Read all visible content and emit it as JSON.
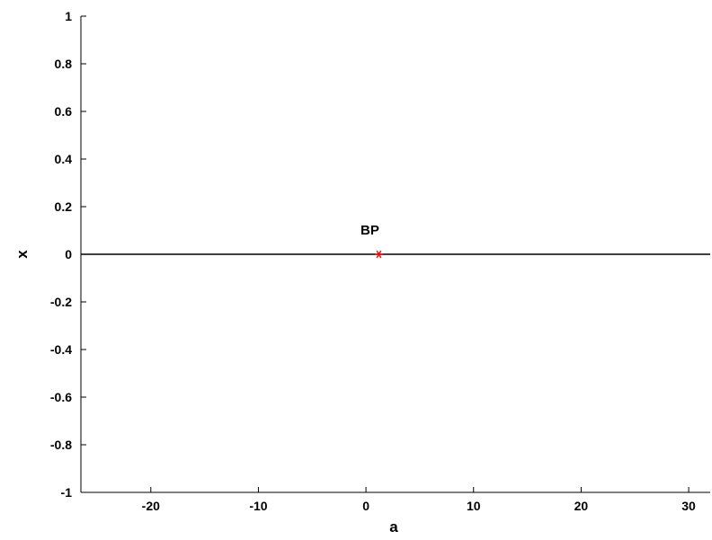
{
  "chart_data": {
    "type": "line",
    "title": "",
    "xlabel": "a",
    "ylabel": "x",
    "xlim": [
      -26.5,
      32
    ],
    "ylim": [
      -1,
      1
    ],
    "grid": false,
    "x_ticks": [
      -20,
      -10,
      0,
      10,
      20,
      30
    ],
    "x_tick_labels": [
      "-20",
      "-10",
      "0",
      "10",
      "20",
      "30"
    ],
    "y_ticks": [
      -1,
      -0.8,
      -0.6,
      -0.4,
      -0.2,
      0,
      0.2,
      0.4,
      0.6,
      0.8,
      1
    ],
    "y_tick_labels": [
      "-1",
      "-0.8",
      "-0.6",
      "-0.4",
      "-0.2",
      "0",
      "0.2",
      "0.4",
      "0.6",
      "0.8",
      "1"
    ],
    "series": [
      {
        "x": [
          -26.5,
          32
        ],
        "y": [
          0,
          0
        ],
        "color": "#000000"
      }
    ],
    "markers": [
      {
        "x": 1.2,
        "y": 0,
        "symbol": "*",
        "color": "#ff0000"
      }
    ],
    "annotations": [
      {
        "text": "BP",
        "x": 1.2,
        "y": 0
      }
    ]
  }
}
